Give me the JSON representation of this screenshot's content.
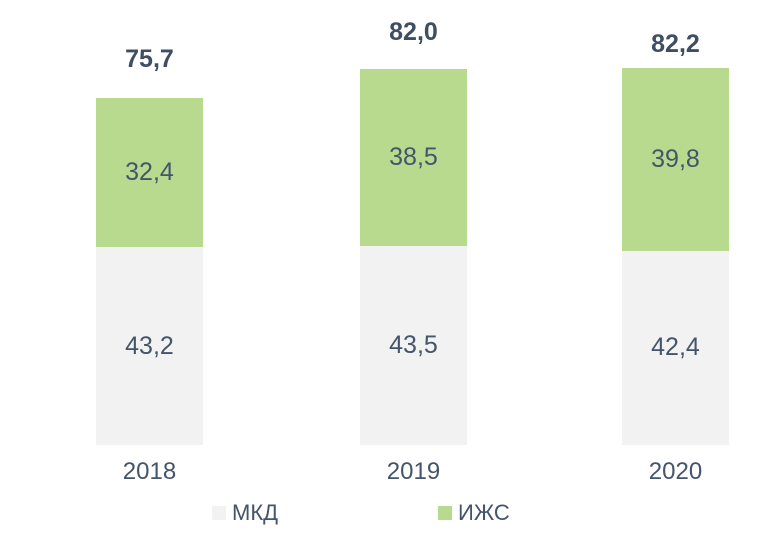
{
  "chart_data": {
    "type": "bar",
    "stacked": true,
    "title": "",
    "xlabel": "",
    "ylabel": "",
    "categories": [
      "2018",
      "2019",
      "2020"
    ],
    "series": [
      {
        "name": "МКД",
        "color": "#f2f2f2",
        "values": [
          43.2,
          43.5,
          42.4
        ],
        "value_labels": [
          "43,2",
          "43,5",
          "42,4"
        ]
      },
      {
        "name": "ИЖС",
        "color": "#b7da8f",
        "values": [
          32.4,
          38.5,
          39.8
        ],
        "value_labels": [
          "32,4",
          "38,5",
          "39,8"
        ]
      }
    ],
    "totals": [
      75.7,
      82.0,
      82.2
    ],
    "total_labels": [
      "75,7",
      "82,0",
      "82,2"
    ],
    "legend": {
      "position": "bottom",
      "items": [
        "МКД",
        "ИЖС"
      ]
    },
    "axes": {
      "x_visible": false,
      "y_visible": false,
      "grid": false,
      "ylim": [
        0,
        97
      ]
    },
    "colors": {
      "text": "#44546a",
      "background": "#ffffff"
    },
    "number_format": "decimal-comma"
  }
}
